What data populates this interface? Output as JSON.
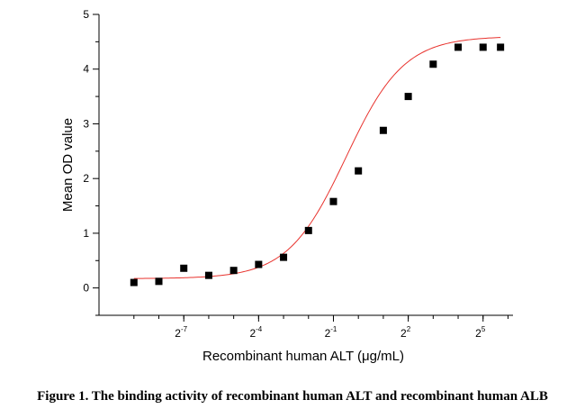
{
  "caption": "Figure 1. The binding activity of recombinant human ALT and recombinant human ALB",
  "chart_data": {
    "type": "scatter",
    "title": "",
    "xlabel": "Recombinant human ALT (μg/mL)",
    "ylabel": "Mean OD value",
    "x_scale": "log2",
    "xlim_log2": [
      -10.4,
      6.2
    ],
    "ylim": [
      -0.5,
      5
    ],
    "y_ticks": [
      0,
      1,
      2,
      3,
      4,
      5
    ],
    "x_tick_labels": [
      {
        "base": "2",
        "exp": "-7",
        "pos": -7
      },
      {
        "base": "2",
        "exp": "-4",
        "pos": -4
      },
      {
        "base": "2",
        "exp": "-1",
        "pos": -1
      },
      {
        "base": "2",
        "exp": "2",
        "pos": 2
      },
      {
        "base": "2",
        "exp": "5",
        "pos": 5
      }
    ],
    "x_minor_ticks": [
      -9,
      -8,
      -7,
      -6,
      -5,
      -4,
      -3,
      -2,
      -1,
      0,
      1,
      2,
      3,
      4,
      5,
      6
    ],
    "series": [
      {
        "marker": "square",
        "color": "#000000",
        "x_log2": [
          -9,
          -8,
          -7,
          -6,
          -5,
          -4,
          -3,
          -2,
          -1,
          0,
          1,
          2,
          3,
          4,
          5,
          5.7
        ],
        "values": [
          0.1,
          0.12,
          0.36,
          0.23,
          0.32,
          0.43,
          0.56,
          1.05,
          1.58,
          2.14,
          2.88,
          3.5,
          4.09,
          4.4,
          4.4,
          4.4
        ]
      }
    ],
    "fit_curve": {
      "color": "#e8322d",
      "model": "4PL",
      "bottom": 0.17,
      "top": 4.6,
      "ec50_log2": -0.5,
      "hill_log2": 0.62
    }
  }
}
